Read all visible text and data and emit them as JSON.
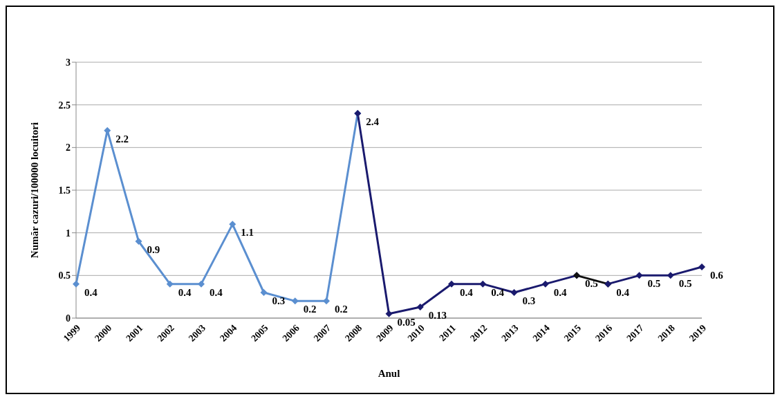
{
  "chart_data": {
    "type": "line",
    "xlabel": "Anul",
    "ylabel": "Număr cazuri/100000 locuitori",
    "categories": [
      "1999",
      "2000",
      "2001",
      "2002",
      "2003",
      "2004",
      "2005",
      "2006",
      "2007",
      "2008",
      "2009",
      "2010",
      "2011",
      "2012",
      "2013",
      "2014",
      "2015",
      "2016",
      "2017",
      "2018",
      "2019"
    ],
    "series": [
      {
        "color": "#5b8fd0",
        "values": [
          0.4,
          2.2,
          0.9,
          0.4,
          0.4,
          1.1,
          0.3,
          0.2,
          0.2,
          2.4,
          null,
          null,
          null,
          null,
          null,
          null,
          null,
          null,
          null,
          null,
          null
        ],
        "value_labels": [
          "0.4",
          "2.2",
          "0.9",
          "0.4",
          "0.4",
          "1.1",
          "0.3",
          "0.2",
          "0.2",
          "2.4",
          null,
          null,
          null,
          null,
          null,
          null,
          null,
          null,
          null,
          null,
          null
        ]
      },
      {
        "color": "#1a1a6e",
        "values": [
          null,
          null,
          null,
          null,
          null,
          null,
          null,
          null,
          null,
          2.4,
          0.05,
          0.13,
          0.4,
          0.4,
          0.3,
          0.4,
          0.5,
          null,
          null,
          null,
          null
        ],
        "value_labels": [
          null,
          null,
          null,
          null,
          null,
          null,
          null,
          null,
          null,
          null,
          "0.05",
          "0.13",
          "0.4",
          "0.4",
          "0.3",
          "0.4",
          "0.5",
          null,
          null,
          null,
          null
        ]
      },
      {
        "color": "#111111",
        "values": [
          null,
          null,
          null,
          null,
          null,
          null,
          null,
          null,
          null,
          null,
          null,
          null,
          null,
          null,
          null,
          null,
          0.5,
          0.4,
          null,
          null,
          null
        ],
        "value_labels": [
          null,
          null,
          null,
          null,
          null,
          null,
          null,
          null,
          null,
          null,
          null,
          null,
          null,
          null,
          null,
          null,
          null,
          null,
          null,
          null,
          null
        ]
      },
      {
        "color": "#1a1a6e",
        "values": [
          null,
          null,
          null,
          null,
          null,
          null,
          null,
          null,
          null,
          null,
          null,
          null,
          null,
          null,
          null,
          null,
          null,
          0.4,
          0.5,
          0.5,
          0.6
        ],
        "value_labels": [
          null,
          null,
          null,
          null,
          null,
          null,
          null,
          null,
          null,
          null,
          null,
          null,
          null,
          null,
          null,
          null,
          null,
          "0.4",
          "0.5",
          "0.5",
          "0.6"
        ]
      }
    ],
    "ylim": [
      0,
      3
    ],
    "yticks": [
      0,
      0.5,
      1,
      1.5,
      2,
      2.5,
      3
    ],
    "grid": "y",
    "marker": "diamond"
  }
}
